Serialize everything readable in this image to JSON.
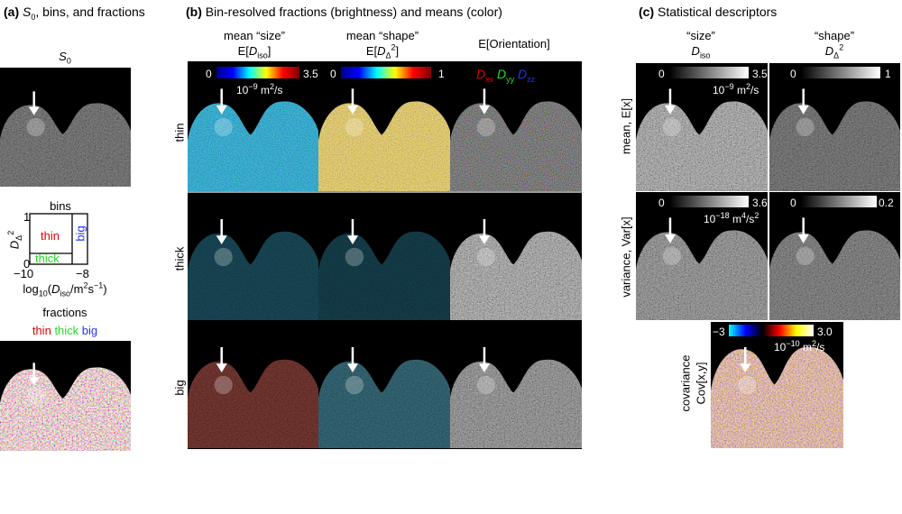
{
  "panel_a": {
    "label": "(a)",
    "title": [
      "S",
      "0",
      ", bins, and fractions"
    ],
    "image_title": [
      "S",
      "0"
    ],
    "bins": {
      "title": "bins",
      "y_label": [
        "D",
        "Δ",
        "2"
      ],
      "y_ticks": [
        "1",
        "0"
      ],
      "x_ticks": [
        "−10",
        "−8"
      ],
      "x_label": [
        "log",
        "10",
        "(",
        "D",
        "iso",
        "/m",
        "2",
        "s",
        "−1",
        ")"
      ],
      "thin": "thin",
      "thick": "thick",
      "big": "big"
    },
    "fractions": {
      "title": "fractions",
      "legend": [
        "thin",
        "thick",
        "big"
      ]
    }
  },
  "panel_b": {
    "label": "(b)",
    "title": "Bin-resolved fractions (brightness) and means (color)",
    "columns": [
      {
        "title": "mean “size”",
        "expr": [
          "E[",
          "D",
          "iso",
          "]"
        ],
        "scale_min": "0",
        "scale_max": "3.5",
        "unit": [
          "10",
          "−9",
          " m",
          "2",
          "/s"
        ]
      },
      {
        "title": "mean “shape”",
        "expr": [
          "E[",
          "D",
          "Δ",
          "2",
          "]"
        ],
        "scale_min": "0",
        "scale_max": "1"
      },
      {
        "title": "E[Orientation]",
        "legend": [
          [
            "D",
            "xx"
          ],
          [
            "D",
            "yy"
          ],
          [
            "D",
            "zz"
          ]
        ]
      }
    ],
    "rows": [
      "thin",
      "thick",
      "big"
    ]
  },
  "panel_c": {
    "label": "(c)",
    "title": "Statistical descriptors",
    "columns": [
      {
        "title": "“size”",
        "expr": [
          "D",
          "iso"
        ]
      },
      {
        "title": "“shape”",
        "expr": [
          "D",
          "Δ",
          "2"
        ]
      }
    ],
    "rows": [
      {
        "label": "mean, E[x]",
        "bars": [
          {
            "min": "0",
            "max": "3.5",
            "unit": [
              "10",
              "−9",
              " m",
              "2",
              "/s"
            ]
          },
          {
            "min": "0",
            "max": "1"
          }
        ]
      },
      {
        "label": "variance, Var[x]",
        "bars": [
          {
            "min": "0",
            "max": "3.6",
            "unit": [
              "10",
              "−18",
              " m",
              "4",
              "/s",
              "2"
            ]
          },
          {
            "min": "0",
            "max": "0.2"
          }
        ]
      }
    ],
    "covariance": {
      "label": [
        "covariance",
        "Cov[x,y]"
      ],
      "min": "−3",
      "max": "3.0",
      "unit": [
        "10",
        "−10",
        " m",
        "2",
        "/s"
      ]
    }
  }
}
